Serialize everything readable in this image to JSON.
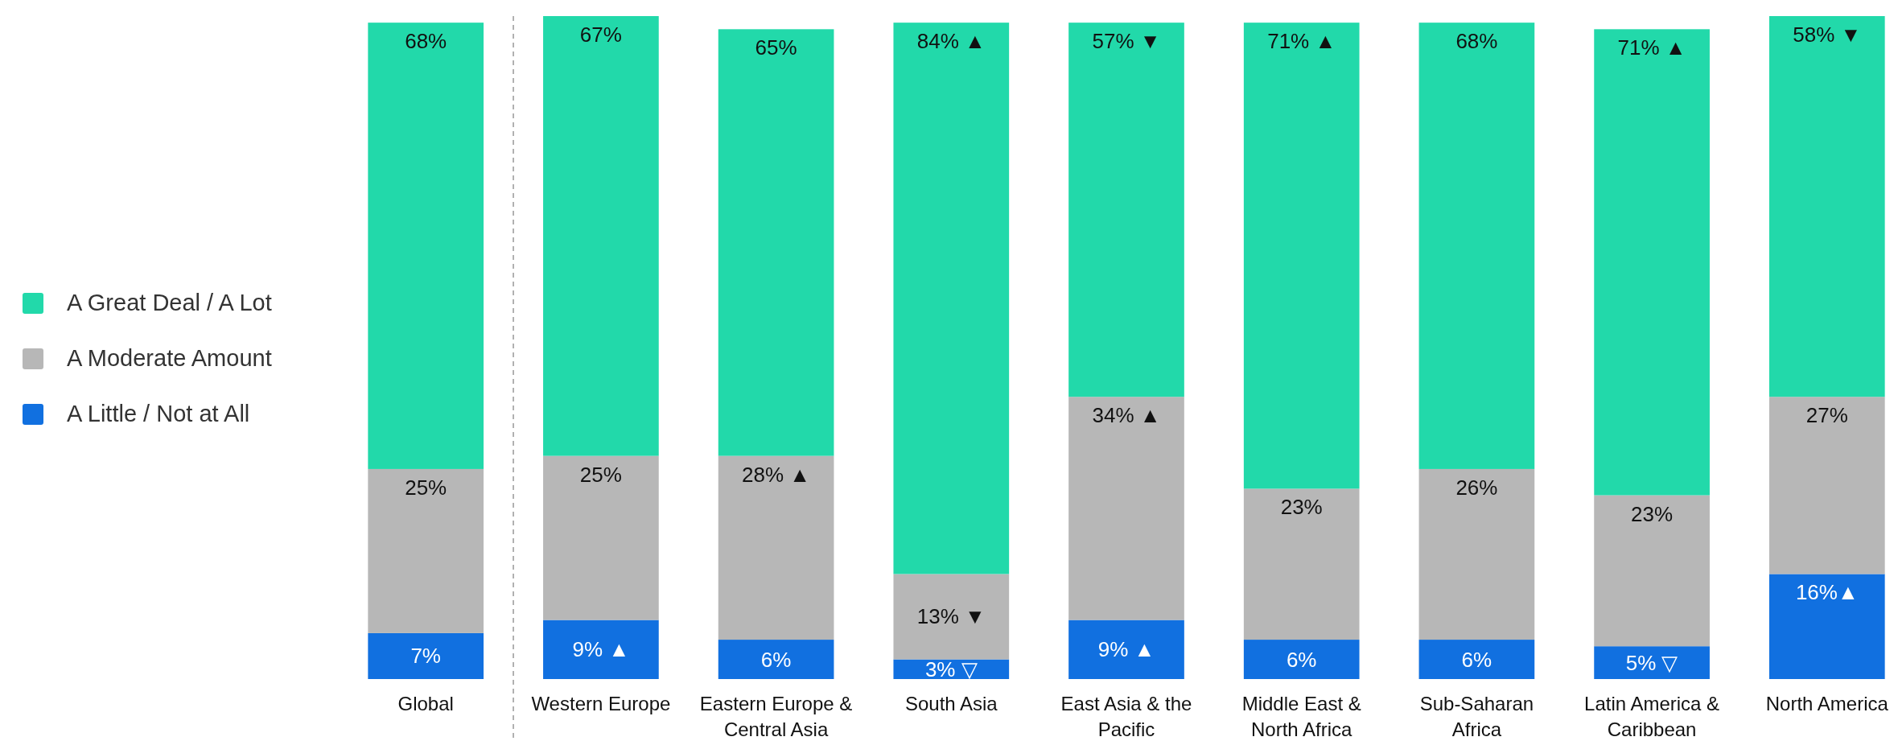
{
  "chart_data": {
    "type": "bar",
    "stacked": true,
    "legend": "left",
    "categories": [
      "Global",
      "Western Europe",
      "Eastern Europe & Central Asia",
      "South Asia",
      "East Asia & the Pacific",
      "Middle East & North Africa",
      "Sub-Saharan Africa",
      "Latin America & Caribbean",
      "North America"
    ],
    "series": [
      {
        "name": "A Little / Not at All",
        "color": "#1170e0",
        "values": [
          7,
          9,
          6,
          3,
          9,
          6,
          6,
          5,
          16
        ],
        "value_labels": [
          "7%",
          "9% ▲",
          "6%",
          "3% ▽",
          "9% ▲",
          "6%",
          "6%",
          "5% ▽",
          "16%▲"
        ]
      },
      {
        "name": "A Moderate Amount",
        "color": "#b7b7b7",
        "values": [
          25,
          25,
          28,
          13,
          34,
          23,
          26,
          23,
          27
        ],
        "value_labels": [
          "25%",
          "25%",
          "28% ▲",
          "13% ▼",
          "34% ▲",
          "23%",
          "26%",
          "23%",
          "27%"
        ]
      },
      {
        "name": "A Great Deal / A Lot",
        "color": "#22d9aa",
        "values": [
          68,
          67,
          65,
          84,
          57,
          71,
          68,
          71,
          58
        ],
        "value_labels": [
          "68%",
          "67%",
          "65%",
          "84% ▲",
          "57% ▼",
          "71% ▲",
          "68%",
          "71% ▲",
          "58% ▼"
        ]
      }
    ]
  }
}
